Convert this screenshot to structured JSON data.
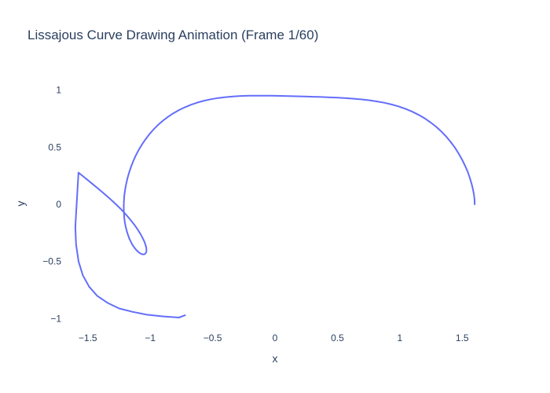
{
  "chart_data": {
    "type": "line",
    "title": "Lissajous Curve Drawing Animation (Frame 1/60)",
    "xlabel": "x",
    "ylabel": "y",
    "xlim": [
      -1.7,
      1.7
    ],
    "ylim": [
      -1.1,
      1.1
    ],
    "x_ticks": [
      {
        "value": -1.5,
        "label": "−1.5"
      },
      {
        "value": -1,
        "label": "−1"
      },
      {
        "value": -0.5,
        "label": "−0.5"
      },
      {
        "value": 0,
        "label": "0"
      },
      {
        "value": 0.5,
        "label": "0.5"
      },
      {
        "value": 1,
        "label": "1"
      },
      {
        "value": 1.5,
        "label": "1.5"
      }
    ],
    "y_ticks": [
      {
        "value": 1,
        "label": "1"
      },
      {
        "value": 0.5,
        "label": "0.5"
      },
      {
        "value": 0,
        "label": "0"
      },
      {
        "value": -0.5,
        "label": "−0.5"
      },
      {
        "value": -1,
        "label": "−1"
      }
    ],
    "grid": false,
    "legend": "none",
    "series": [
      {
        "color": "#636efa",
        "x": [
          1.6,
          1.599,
          1.594,
          1.586,
          1.575,
          1.56,
          1.543,
          1.522,
          1.498,
          1.471,
          1.441,
          1.408,
          1.372,
          1.333,
          1.292,
          1.248,
          1.202,
          1.153,
          1.102,
          1.049,
          0.994,
          0.937,
          0.879,
          0.819,
          0.758,
          0.696,
          0.632,
          0.568,
          0.503,
          0.438,
          0.372,
          0.306,
          0.24,
          0.174,
          0.108,
          0.043,
          -0.022,
          -0.087,
          -0.151,
          -0.214,
          -0.276,
          -0.337,
          -0.397,
          -0.455,
          -0.512,
          -0.567,
          -0.62,
          -0.672,
          -0.721,
          -0.769,
          -0.814,
          -0.857,
          -0.898,
          -0.937,
          -0.973,
          -1.006,
          -1.037,
          -1.066,
          -1.092,
          -1.115,
          -1.136,
          -1.154,
          -1.17,
          -1.183,
          -1.194,
          -1.202,
          -1.208,
          -1.211,
          -1.212,
          -1.211,
          -1.208,
          -1.203,
          -1.196,
          -1.187,
          -1.177,
          -1.166,
          -1.153,
          -1.14,
          -1.126,
          -1.112,
          -1.098,
          -1.085,
          -1.072,
          -1.06,
          -1.05,
          -1.041,
          -1.035,
          -1.031,
          -1.03,
          -1.032,
          -1.038,
          -1.047,
          -1.061,
          -1.078,
          -1.1,
          -1.126,
          -1.157,
          -1.192,
          -1.231,
          -1.274,
          -1.32,
          -1.369,
          -1.42,
          -1.472,
          -1.524,
          -1.575,
          -1.596,
          -1.6,
          -1.594,
          -1.574,
          -1.54,
          -1.49,
          -1.425,
          -1.344,
          -1.25,
          -1.143,
          -1.026,
          -0.9,
          -0.77,
          -0.72
        ],
        "y": [
          0,
          0.04,
          0.085,
          0.133,
          0.183,
          0.235,
          0.288,
          0.341,
          0.394,
          0.446,
          0.497,
          0.546,
          0.593,
          0.637,
          0.678,
          0.716,
          0.751,
          0.782,
          0.81,
          0.834,
          0.855,
          0.873,
          0.888,
          0.9,
          0.91,
          0.918,
          0.924,
          0.929,
          0.933,
          0.936,
          0.939,
          0.941,
          0.943,
          0.945,
          0.947,
          0.949,
          0.95,
          0.951,
          0.951,
          0.95,
          0.948,
          0.944,
          0.938,
          0.93,
          0.92,
          0.907,
          0.891,
          0.872,
          0.85,
          0.825,
          0.797,
          0.766,
          0.732,
          0.695,
          0.656,
          0.614,
          0.57,
          0.524,
          0.477,
          0.428,
          0.378,
          0.327,
          0.276,
          0.224,
          0.173,
          0.122,
          0.072,
          0.023,
          -0.025,
          -0.071,
          -0.116,
          -0.158,
          -0.198,
          -0.236,
          -0.271,
          -0.303,
          -0.332,
          -0.358,
          -0.38,
          -0.399,
          -0.414,
          -0.425,
          -0.433,
          -0.437,
          -0.437,
          -0.433,
          -0.425,
          -0.413,
          -0.397,
          -0.377,
          -0.353,
          -0.325,
          -0.294,
          -0.259,
          -0.221,
          -0.18,
          -0.137,
          -0.092,
          -0.046,
          0.0,
          0.046,
          0.093,
          0.14,
          0.187,
          0.233,
          0.278,
          -0.12,
          -0.2,
          -0.35,
          -0.5,
          -0.62,
          -0.72,
          -0.8,
          -0.86,
          -0.91,
          -0.94,
          -0.965,
          -0.98,
          -0.99,
          -0.97
        ]
      }
    ]
  }
}
